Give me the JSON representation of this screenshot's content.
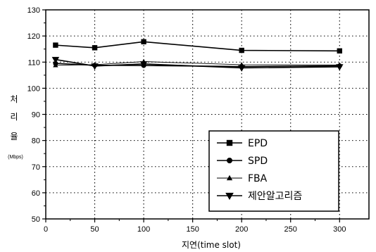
{
  "chart_data": {
    "type": "line",
    "xlabel": "지연(time slot)",
    "ylabel_chars": [
      "처",
      "리",
      "율"
    ],
    "y_unit": "(Mbps)",
    "xlim": [
      0,
      330
    ],
    "ylim": [
      50,
      130
    ],
    "x_ticks": [
      0,
      50,
      100,
      150,
      200,
      250,
      300
    ],
    "y_ticks": [
      50,
      60,
      70,
      80,
      90,
      100,
      110,
      120,
      130
    ],
    "grid": true,
    "legend_position": "bottom-right",
    "x": [
      10,
      50,
      100,
      200,
      300
    ],
    "series": [
      {
        "name": "EPD",
        "marker": "square",
        "values": [
          116.5,
          115.5,
          117.8,
          114.5,
          114.3
        ]
      },
      {
        "name": "SPD",
        "marker": "circle",
        "values": [
          109.5,
          108.8,
          108.7,
          108.3,
          108.6
        ]
      },
      {
        "name": "FBA",
        "marker": "triangle-up",
        "values": [
          108.8,
          109.0,
          110.2,
          109.0,
          108.9
        ]
      },
      {
        "name": "제안알고리즘",
        "marker": "triangle-down",
        "values": [
          111.0,
          108.5,
          109.3,
          107.8,
          108.2
        ]
      }
    ]
  }
}
